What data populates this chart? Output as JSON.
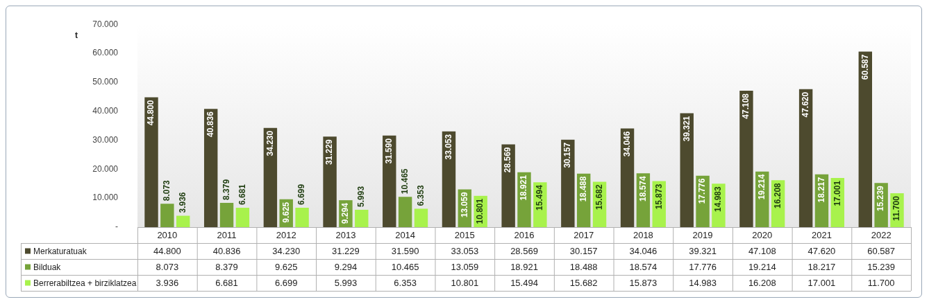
{
  "chart_data": {
    "type": "bar",
    "ylabel": "t",
    "categories": [
      "2010",
      "2011",
      "2012",
      "2013",
      "2014",
      "2015",
      "2016",
      "2017",
      "2018",
      "2019",
      "2020",
      "2021",
      "2022"
    ],
    "series": [
      {
        "name": "Merkaturatuak",
        "color": "#4d4a2e",
        "values": [
          44800,
          40836,
          34230,
          31229,
          31590,
          33053,
          28569,
          30157,
          34046,
          39321,
          47108,
          47620,
          60587
        ],
        "value_labels": [
          "44.800",
          "40.836",
          "34.230",
          "31.229",
          "31.590",
          "33.053",
          "28.569",
          "30.157",
          "34.046",
          "39.321",
          "47.108",
          "47.620",
          "60.587"
        ]
      },
      {
        "name": "Bilduak",
        "color": "#76a33a",
        "values": [
          8073,
          8379,
          9625,
          9294,
          10465,
          13059,
          18921,
          18488,
          18574,
          17776,
          19214,
          18217,
          15239
        ],
        "value_labels": [
          "8.073",
          "8.379",
          "9.625",
          "9.294",
          "10.465",
          "13.059",
          "18.921",
          "18.488",
          "18.574",
          "17.776",
          "19.214",
          "18.217",
          "15.239"
        ]
      },
      {
        "name": "Berrerabiltzea + birziklatzea",
        "color": "#a8f24c",
        "values": [
          3936,
          6681,
          6699,
          5993,
          6353,
          10801,
          15494,
          15682,
          15873,
          14983,
          16208,
          17001,
          11700
        ],
        "value_labels": [
          "3.936",
          "6.681",
          "6.699",
          "5.993",
          "6.353",
          "10.801",
          "15.494",
          "15.682",
          "15.873",
          "14.983",
          "16.208",
          "17.001",
          "11.700"
        ]
      }
    ],
    "ylim": [
      0,
      70000
    ],
    "yticks": [
      {
        "value": 0,
        "label": "-"
      },
      {
        "value": 10000,
        "label": "10.000"
      },
      {
        "value": 20000,
        "label": "20.000"
      },
      {
        "value": 30000,
        "label": "30.000"
      },
      {
        "value": 40000,
        "label": "40.000"
      },
      {
        "value": 50000,
        "label": "50.000"
      },
      {
        "value": 60000,
        "label": "60.000"
      },
      {
        "value": 70000,
        "label": "70.000"
      }
    ],
    "grid": false,
    "legend": "bottom"
  }
}
